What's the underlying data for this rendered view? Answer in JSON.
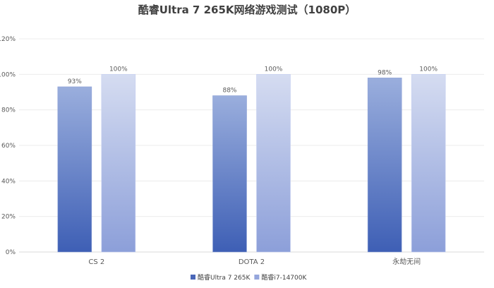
{
  "chart_data": {
    "type": "bar",
    "title": "酷睿Ultra 7 265K网络游戏测试（1080P）",
    "xlabel": "",
    "ylabel": "",
    "categories": [
      "CS 2",
      "DOTA 2",
      "永劫无间"
    ],
    "series": [
      {
        "name": "酷睿Ultra 7 265K",
        "values": [
          93,
          88,
          98
        ],
        "labels": [
          "93%",
          "88%",
          "98%"
        ],
        "color_top": "#9aaedd",
        "color_bottom": "#3e5fb5"
      },
      {
        "name": "酷睿i7-14700K",
        "values": [
          100,
          100,
          100
        ],
        "labels": [
          "100%",
          "100%",
          "100%"
        ],
        "color_top": "#d5dcf1",
        "color_bottom": "#8c9fd9"
      }
    ],
    "ylim": [
      0,
      120
    ],
    "yticks": [
      0,
      20,
      40,
      60,
      80,
      100,
      120
    ],
    "ytick_labels": [
      "0%",
      "20%",
      "40%",
      "60%",
      "80%",
      "100%",
      "120%"
    ],
    "grid": true,
    "legend_position": "bottom"
  }
}
